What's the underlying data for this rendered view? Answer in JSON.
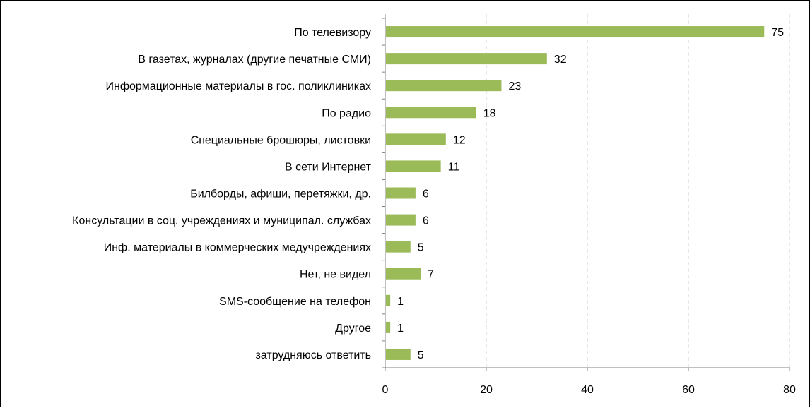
{
  "chart_data": {
    "type": "bar",
    "orientation": "horizontal",
    "categories": [
      "По телевизору",
      "В газетах, журналах (другие печатные СМИ)",
      "Информационные материалы в гос. поликлиниках",
      "По радио",
      "Специальные брошюры, листовки",
      "В сети Интернет",
      "Билборды, афиши, перетяжки, др.",
      "Консультации в соц. учреждениях и муниципал. службах",
      "Инф. материалы в коммерческих медучреждениях",
      "Нет, не видел",
      "SMS-сообщение на телефон",
      "Другое",
      "затрудняюсь ответить"
    ],
    "values": [
      75,
      32,
      23,
      18,
      12,
      11,
      6,
      6,
      5,
      7,
      1,
      1,
      5
    ],
    "xlim": [
      0,
      80
    ],
    "xticks": [
      0,
      20,
      40,
      60,
      80
    ],
    "grid": "vertical dashed",
    "bar_color": "#9bbb59"
  }
}
